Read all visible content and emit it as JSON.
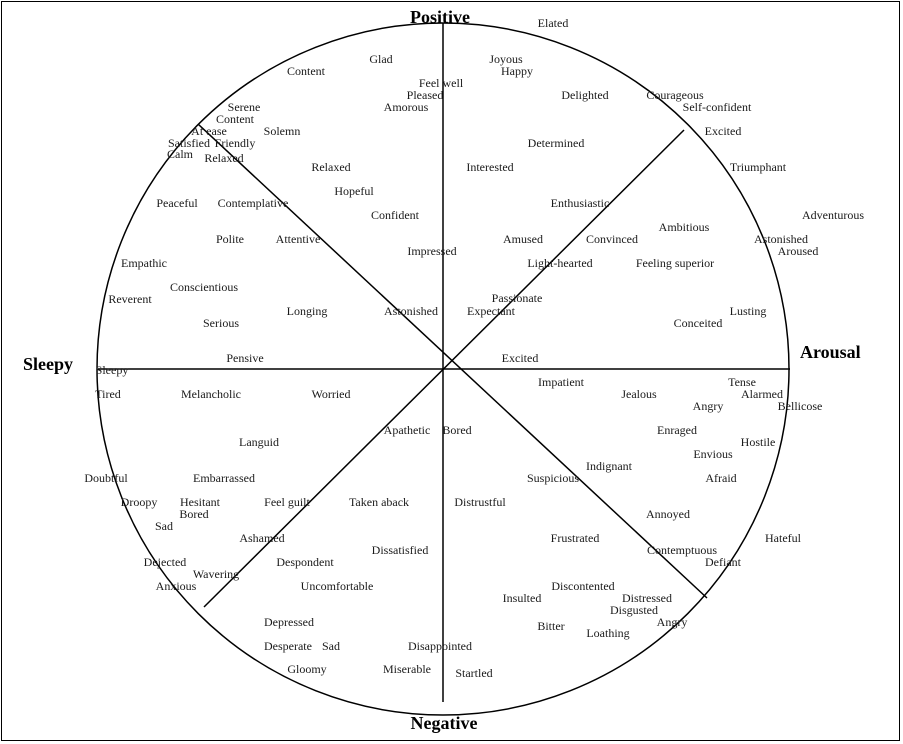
{
  "axes": {
    "top": "Positive",
    "bottom": "Negative",
    "left": "Sleepy",
    "right": "Arousal"
  },
  "words": [
    "Elated",
    "Glad",
    "Content",
    "Joyous",
    "Happy",
    "Feel well",
    "Pleased",
    "Amorous",
    "Delighted",
    "Courageous",
    "Serene",
    "Content",
    "Self-confident",
    "At ease",
    "Solemn",
    "Excited",
    "Satisfied",
    "Friendly",
    "Calm",
    "Relaxed",
    "Determined",
    "Relaxed",
    "Interested",
    "Triumphant",
    "Hopeful",
    "Peaceful",
    "Contemplative",
    "Enthusiastic",
    "Confident",
    "Adventurous",
    "Ambitious",
    "Polite",
    "Attentive",
    "Amused",
    "Convinced",
    "Astonished",
    "Impressed",
    "Aroused",
    "Empathic",
    "Light-hearted",
    "Feeling superior",
    "Conscientious",
    "Passionate",
    "Reverent",
    "Longing",
    "Astonished",
    "Expectant",
    "Lusting",
    "Serious",
    "Conceited",
    "Pensive",
    "Excited",
    "Sleepy",
    "Impatient",
    "Tense",
    "Tired",
    "Melancholic",
    "Worried",
    "Jealous",
    "Alarmed",
    "Angry",
    "Bellicose",
    "Apathetic",
    "Bored",
    "Enraged",
    "Languid",
    "Hostile",
    "Envious",
    "Indignant",
    "Doubtful",
    "Embarrassed",
    "Suspicious",
    "Afraid",
    "Droopy",
    "Hesitant",
    "Feel guilt",
    "Taken aback",
    "Distrustful",
    "Bored",
    "Annoyed",
    "Sad",
    "Ashamed",
    "Hateful",
    "Frustrated",
    "Dissatisfied",
    "Contemptuous",
    "Despondent",
    "Dejected",
    "Defiant",
    "Wavering",
    "Anxious",
    "Uncomfortable",
    "Discontented",
    "Distressed",
    "Insulted",
    "Disgusted",
    "Angry",
    "Depressed",
    "Bitter",
    "Loathing",
    "Desperate",
    "Sad",
    "Disappointed",
    "Gloomy",
    "Miserable",
    "Startled"
  ]
}
